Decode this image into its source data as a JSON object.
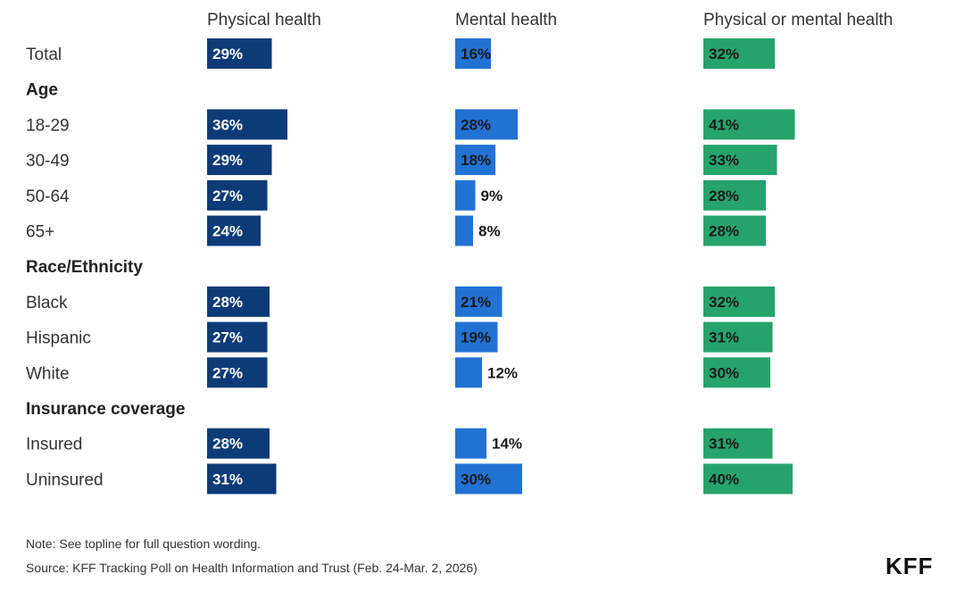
{
  "chart_data": {
    "type": "bar",
    "orientation": "horizontal",
    "columns": [
      {
        "name": "Physical health",
        "color": "#0d3b78"
      },
      {
        "name": "Mental health",
        "color": "#2272d4"
      },
      {
        "name": "Physical or mental health",
        "color": "#26a36b"
      }
    ],
    "rows": [
      {
        "kind": "row",
        "label": "Total",
        "values": [
          29,
          16,
          32
        ]
      },
      {
        "kind": "group",
        "label": "Age"
      },
      {
        "kind": "row",
        "label": "18-29",
        "values": [
          36,
          28,
          41
        ]
      },
      {
        "kind": "row",
        "label": "30-49",
        "values": [
          29,
          18,
          33
        ]
      },
      {
        "kind": "row",
        "label": "50-64",
        "values": [
          27,
          9,
          28
        ]
      },
      {
        "kind": "row",
        "label": "65+",
        "values": [
          24,
          8,
          28
        ]
      },
      {
        "kind": "group",
        "label": "Race/Ethnicity"
      },
      {
        "kind": "row",
        "label": "Black",
        "values": [
          28,
          21,
          32
        ]
      },
      {
        "kind": "row",
        "label": "Hispanic",
        "values": [
          27,
          19,
          31
        ]
      },
      {
        "kind": "row",
        "label": "White",
        "values": [
          27,
          12,
          30
        ]
      },
      {
        "kind": "group",
        "label": "Insurance coverage"
      },
      {
        "kind": "row",
        "label": "Insured",
        "values": [
          28,
          14,
          31
        ]
      },
      {
        "kind": "row",
        "label": "Uninsured",
        "values": [
          31,
          30,
          40
        ]
      }
    ],
    "value_suffix": "%"
  },
  "footer": {
    "note": "Note: See topline for full question wording.",
    "source": "Source: KFF Tracking Poll on Health Information and Trust (Feb. 24-Mar. 2, 2026)"
  },
  "logo": "KFF"
}
